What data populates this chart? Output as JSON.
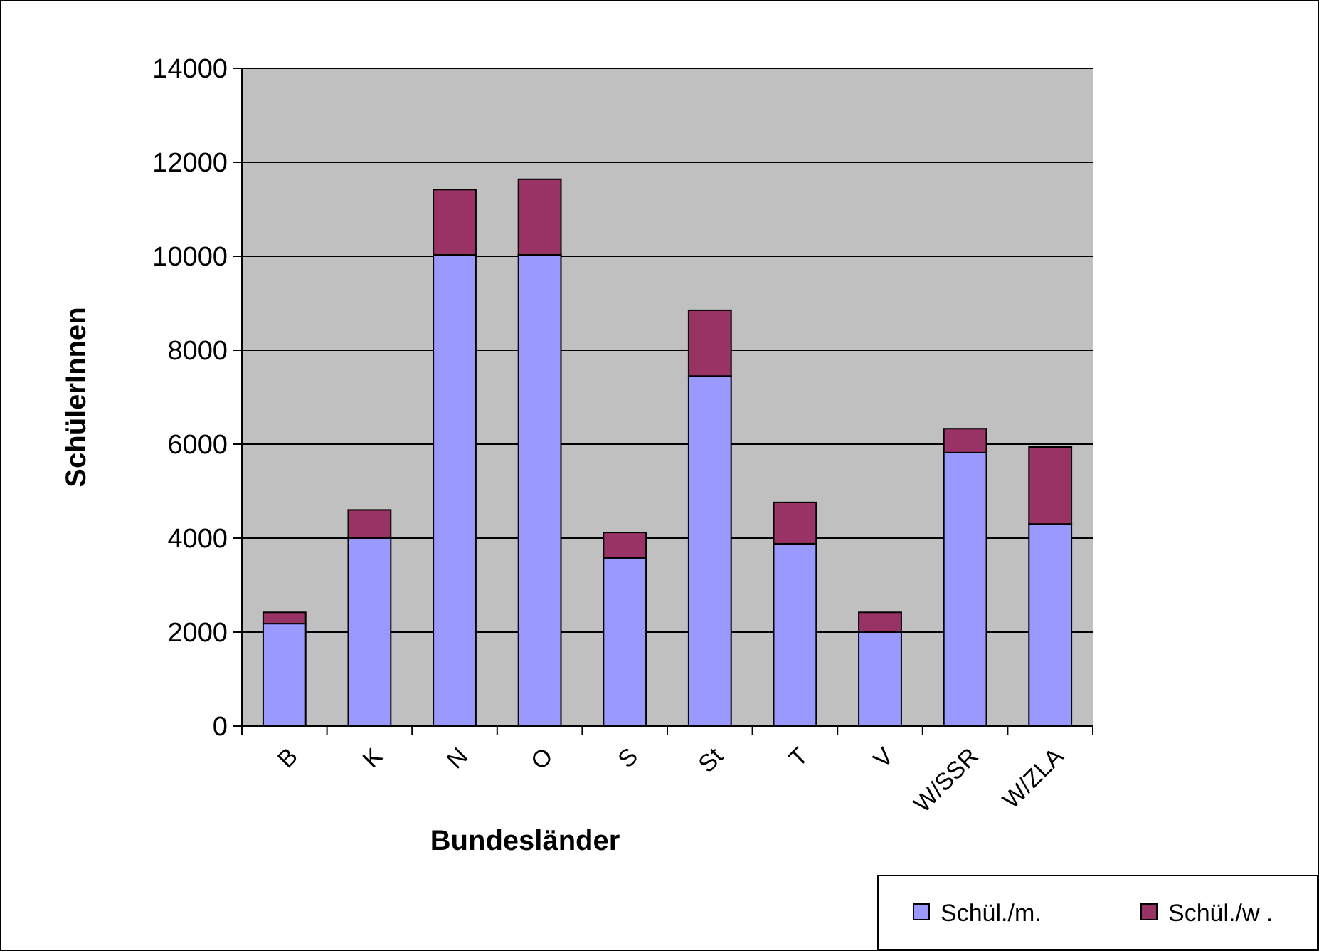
{
  "chart_data": {
    "type": "bar",
    "stacked": true,
    "xlabel": "Bundesländer",
    "ylabel": "SchülerInnen",
    "categories": [
      "B",
      "K",
      "N",
      "O",
      "S",
      "St",
      "T",
      "V",
      "W/SSR",
      "W/ZLA"
    ],
    "series": [
      {
        "name": "Schül./m.",
        "color": "#9999ff",
        "values": [
          2180,
          4000,
          10030,
          10030,
          3580,
          7450,
          3880,
          2000,
          5820,
          4300
        ]
      },
      {
        "name": "Schül./w .",
        "color": "#993366",
        "values": [
          240,
          600,
          1390,
          1610,
          540,
          1400,
          880,
          420,
          510,
          1640
        ]
      }
    ],
    "ylim": [
      0,
      14000
    ],
    "yticks": [
      0,
      2000,
      4000,
      6000,
      8000,
      10000,
      12000,
      14000
    ],
    "grid": "y",
    "legend": "bottom right"
  }
}
